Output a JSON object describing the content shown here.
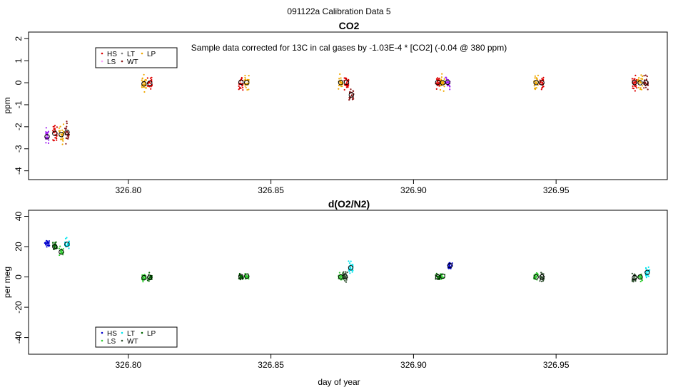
{
  "figure": {
    "title": "091122a   Calibration Data 5",
    "xlabel": "day of year"
  },
  "chart_data": [
    {
      "type": "scatter",
      "title": "CO2",
      "ylabel": "ppm",
      "annotation": "Sample data corrected for 13C in cal gases by -1.03E-4 * [CO2] (-0.04 @ 380 ppm)",
      "xlim": [
        326.765,
        326.989
      ],
      "ylim": [
        -4.4,
        2.3
      ],
      "xticks": [
        326.8,
        326.85,
        326.9,
        326.95
      ],
      "xticklabels": [
        "326.80",
        "326.85",
        "326.90",
        "326.95"
      ],
      "yticks": [
        -4,
        -3,
        -2,
        -1,
        0,
        1,
        2
      ],
      "yticklabels": [
        "-4",
        "-3",
        "-2",
        "-1",
        "0",
        "1",
        "2"
      ],
      "legend": {
        "position": "top-left",
        "items": [
          {
            "label": "HS",
            "color": "#dd0000"
          },
          {
            "label": "LT",
            "color": "#7f7f7f"
          },
          {
            "label": "LP",
            "color": "#f0a800"
          },
          {
            "label": "LS",
            "color": "#ff9fff"
          },
          {
            "label": "WT",
            "color": "#8b1a1a"
          }
        ]
      },
      "series": [
        {
          "name": "g1-a",
          "x": 326.7715,
          "y": -2.45,
          "spread": 0.7,
          "color": "#a020f0",
          "circle": true
        },
        {
          "name": "g1-b",
          "x": 326.7742,
          "y": -2.3,
          "spread": 0.8,
          "color": "#dd0000",
          "circle": true
        },
        {
          "name": "g1-c",
          "x": 326.7765,
          "y": -2.35,
          "spread": 0.8,
          "color": "#f0a800",
          "circle": true
        },
        {
          "name": "g1-d",
          "x": 326.7785,
          "y": -2.25,
          "spread": 0.9,
          "color": "#8b1a1a",
          "circle": true
        },
        {
          "name": "g2-a",
          "x": 326.8055,
          "y": -0.05,
          "spread": 0.7,
          "color": "#f0a800",
          "circle": true
        },
        {
          "name": "g2-b",
          "x": 326.8075,
          "y": -0.02,
          "spread": 0.6,
          "color": "#dd0000",
          "circle": true
        },
        {
          "name": "g3-a",
          "x": 326.8395,
          "y": 0.02,
          "spread": 0.6,
          "color": "#dd0000",
          "circle": true
        },
        {
          "name": "g3-b",
          "x": 326.8415,
          "y": 0.01,
          "spread": 0.6,
          "color": "#f0a800",
          "circle": true
        },
        {
          "name": "g4-a",
          "x": 326.8745,
          "y": 0.01,
          "spread": 0.7,
          "color": "#f0a800",
          "circle": true
        },
        {
          "name": "g4-b",
          "x": 326.8765,
          "y": 0.02,
          "spread": 0.6,
          "color": "#dd0000",
          "circle": true
        },
        {
          "name": "g4-c",
          "x": 326.8782,
          "y": -0.55,
          "spread": 0.6,
          "color": "#8b1a1a",
          "circle": true
        },
        {
          "name": "g5-a",
          "x": 326.9085,
          "y": 0.01,
          "spread": 0.6,
          "color": "#dd0000",
          "circle": true
        },
        {
          "name": "g5-b",
          "x": 326.9102,
          "y": 0.0,
          "spread": 0.6,
          "color": "#f0a800",
          "circle": true
        },
        {
          "name": "g5-c",
          "x": 326.912,
          "y": 0.02,
          "spread": 0.5,
          "color": "#a020f0",
          "circle": true
        },
        {
          "name": "g6-a",
          "x": 326.943,
          "y": 0.01,
          "spread": 0.7,
          "color": "#f0a800",
          "circle": true
        },
        {
          "name": "g6-b",
          "x": 326.945,
          "y": 0.0,
          "spread": 0.6,
          "color": "#dd0000",
          "circle": true
        },
        {
          "name": "g7-a",
          "x": 326.9775,
          "y": 0.01,
          "spread": 0.7,
          "color": "#dd0000",
          "circle": true
        },
        {
          "name": "g7-b",
          "x": 326.9795,
          "y": 0.0,
          "spread": 0.7,
          "color": "#f0a800",
          "circle": true
        },
        {
          "name": "g7-c",
          "x": 326.9815,
          "y": 0.0,
          "spread": 0.6,
          "color": "#8b1a1a",
          "circle": true
        }
      ]
    },
    {
      "type": "scatter",
      "title": "d(O2/N2)",
      "ylabel": "per meg",
      "xlim": [
        326.765,
        326.989
      ],
      "ylim": [
        -51,
        44
      ],
      "xticks": [
        326.8,
        326.85,
        326.9,
        326.95
      ],
      "xticklabels": [
        "326.80",
        "326.85",
        "326.90",
        "326.95"
      ],
      "yticks": [
        -40,
        -20,
        0,
        20,
        40
      ],
      "yticklabels": [
        "-40",
        "-20",
        "0",
        "20",
        "40"
      ],
      "legend": {
        "position": "bottom-left",
        "items": [
          {
            "label": "HS",
            "color": "#0000cd"
          },
          {
            "label": "LT",
            "color": "#00e5ee"
          },
          {
            "label": "LP",
            "color": "#006400"
          },
          {
            "label": "LS",
            "color": "#32cd32"
          },
          {
            "label": "WT",
            "color": "#2f4f2f"
          }
        ]
      },
      "series": [
        {
          "name": "o1-a",
          "x": 326.7715,
          "y": 22,
          "spread": 5,
          "color": "#0000cd",
          "circle": false
        },
        {
          "name": "o1-b",
          "x": 326.7742,
          "y": 20,
          "spread": 5,
          "color": "#006400",
          "circle": true
        },
        {
          "name": "o1-c",
          "x": 326.7765,
          "y": 16.5,
          "spread": 6,
          "color": "#32cd32",
          "circle": true
        },
        {
          "name": "o1-d",
          "x": 326.7785,
          "y": 21.5,
          "spread": 7,
          "color": "#00e5ee",
          "circle": true
        },
        {
          "name": "o2-a",
          "x": 326.8055,
          "y": -0.5,
          "spread": 5,
          "color": "#32cd32",
          "circle": true
        },
        {
          "name": "o2-b",
          "x": 326.8075,
          "y": -0.3,
          "spread": 5,
          "color": "#006400",
          "circle": true
        },
        {
          "name": "o3-a",
          "x": 326.8395,
          "y": 0.2,
          "spread": 4,
          "color": "#006400",
          "circle": true
        },
        {
          "name": "o3-b",
          "x": 326.8415,
          "y": 0.5,
          "spread": 4,
          "color": "#32cd32",
          "circle": true
        },
        {
          "name": "o4-a",
          "x": 326.8745,
          "y": 0.0,
          "spread": 5,
          "color": "#32cd32",
          "circle": true
        },
        {
          "name": "o4-b",
          "x": 326.876,
          "y": 0.2,
          "spread": 6,
          "color": "#2f4f2f",
          "circle": true
        },
        {
          "name": "o4-c",
          "x": 326.878,
          "y": 6,
          "spread": 7,
          "color": "#00e5ee",
          "circle": true
        },
        {
          "name": "o5-a",
          "x": 326.9085,
          "y": 0.0,
          "spread": 4,
          "color": "#006400",
          "circle": true
        },
        {
          "name": "o5-b",
          "x": 326.9102,
          "y": 0.5,
          "spread": 4,
          "color": "#32cd32",
          "circle": true
        },
        {
          "name": "o5-c",
          "x": 326.9128,
          "y": 7.5,
          "spread": 4,
          "color": "#0000cd",
          "circle": true
        },
        {
          "name": "o6-a",
          "x": 326.943,
          "y": 0.0,
          "spread": 5,
          "color": "#32cd32",
          "circle": true
        },
        {
          "name": "o6-b",
          "x": 326.945,
          "y": 0.0,
          "spread": 5,
          "color": "#2f4f2f",
          "circle": true
        },
        {
          "name": "o7-a",
          "x": 326.9775,
          "y": -0.5,
          "spread": 6,
          "color": "#2f4f2f",
          "circle": true
        },
        {
          "name": "o7-b",
          "x": 326.9795,
          "y": 0.0,
          "spread": 6,
          "color": "#32cd32",
          "circle": true
        },
        {
          "name": "o7-c",
          "x": 326.982,
          "y": 3,
          "spread": 8,
          "color": "#00e5ee",
          "circle": true
        }
      ]
    }
  ]
}
